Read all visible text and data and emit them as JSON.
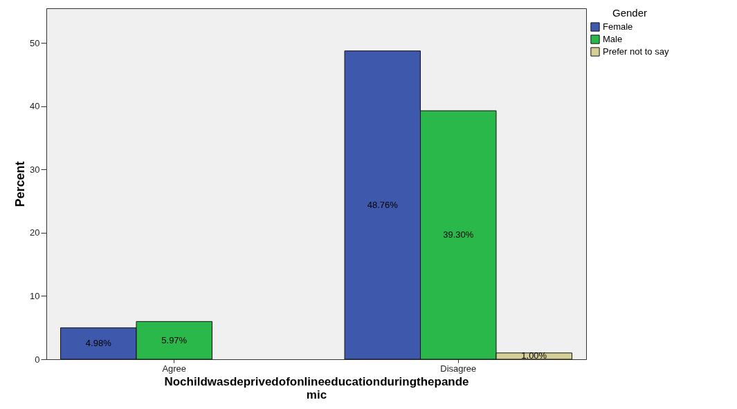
{
  "chart_data": {
    "type": "bar",
    "xlabel": "Nochildwasdeprivedofonlineeducationduringthepandemic",
    "ylabel": "Percent",
    "legend_title": "Gender",
    "legend": "top right",
    "categories": [
      "Agree",
      "Disagree"
    ],
    "series": [
      {
        "name": "Female",
        "color": "#3e58ac",
        "values": [
          4.98,
          48.76
        ],
        "value_labels": [
          "4.98%",
          "48.76%"
        ]
      },
      {
        "name": "Male",
        "color": "#2bb84a",
        "values": [
          5.97,
          39.3
        ],
        "value_labels": [
          "5.97%",
          "39.30%"
        ]
      },
      {
        "name": "Prefer not to say",
        "color": "#d6cf97",
        "values": [
          null,
          1.0
        ],
        "value_labels": [
          null,
          "1.00%"
        ]
      }
    ],
    "ylim": [
      0,
      55.5
    ],
    "yticks": [
      0,
      10,
      20,
      30,
      40,
      50
    ],
    "grid": false
  }
}
